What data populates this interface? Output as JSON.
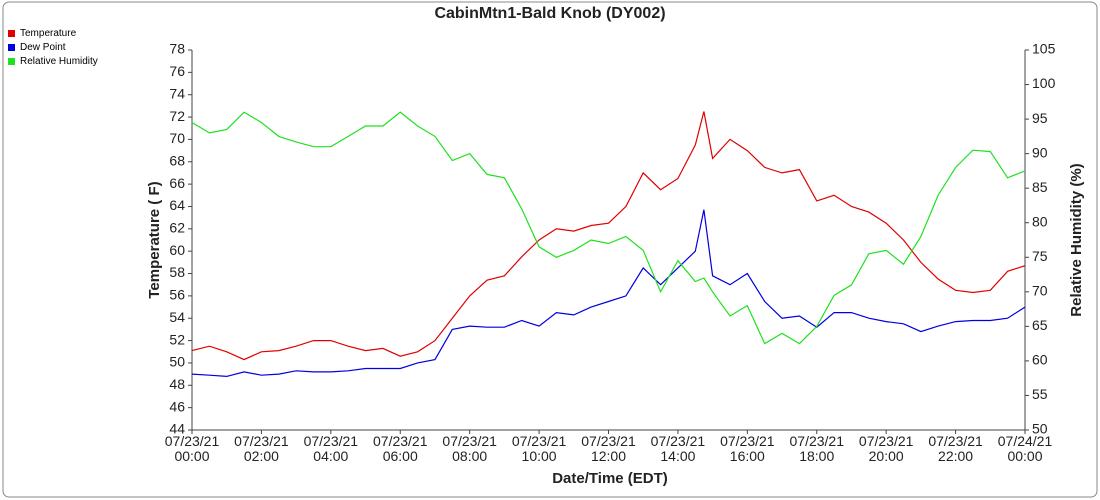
{
  "chart_data": {
    "type": "line",
    "title": "CabinMtn1-Bald Knob (DY002)",
    "x_label": "Date/Time (EDT)",
    "y_label": "Temperature ( F)",
    "y2_label": "Relative Humidity (%)",
    "legend": "top-left",
    "x": [
      "07/23/21 00:00",
      "07/23/21 00:30",
      "07/23/21 01:00",
      "07/23/21 01:30",
      "07/23/21 02:00",
      "07/23/21 02:30",
      "07/23/21 03:00",
      "07/23/21 03:30",
      "07/23/21 04:00",
      "07/23/21 04:30",
      "07/23/21 05:00",
      "07/23/21 05:30",
      "07/23/21 06:00",
      "07/23/21 06:30",
      "07/23/21 07:00",
      "07/23/21 07:30",
      "07/23/21 08:00",
      "07/23/21 08:30",
      "07/23/21 09:00",
      "07/23/21 09:30",
      "07/23/21 10:00",
      "07/23/21 10:30",
      "07/23/21 11:00",
      "07/23/21 11:30",
      "07/23/21 12:00",
      "07/23/21 12:30",
      "07/23/21 13:00",
      "07/23/21 13:30",
      "07/23/21 14:00",
      "07/23/21 14:30",
      "07/23/21 14:45",
      "07/23/21 15:00",
      "07/23/21 15:30",
      "07/23/21 16:00",
      "07/23/21 16:30",
      "07/23/21 17:00",
      "07/23/21 17:30",
      "07/23/21 18:00",
      "07/23/21 18:30",
      "07/23/21 19:00",
      "07/23/21 19:30",
      "07/23/21 20:00",
      "07/23/21 20:30",
      "07/23/21 21:00",
      "07/23/21 21:30",
      "07/23/21 22:00",
      "07/23/21 22:30",
      "07/23/21 23:00",
      "07/23/21 23:30",
      "07/24/21 00:00"
    ],
    "xlim": [
      "07/23/21 00:00",
      "07/24/21 00:00"
    ],
    "xticks": [
      "07/23/21 00:00",
      "07/23/21 02:00",
      "07/23/21 04:00",
      "07/23/21 06:00",
      "07/23/21 08:00",
      "07/23/21 10:00",
      "07/23/21 12:00",
      "07/23/21 14:00",
      "07/23/21 16:00",
      "07/23/21 18:00",
      "07/23/21 20:00",
      "07/23/21 22:00",
      "07/24/21 00:00"
    ],
    "ylim": [
      44,
      78
    ],
    "yticks": [
      44,
      46,
      48,
      50,
      52,
      54,
      56,
      58,
      60,
      62,
      64,
      66,
      68,
      70,
      72,
      74,
      76,
      78
    ],
    "y2lim": [
      50,
      105
    ],
    "y2ticks": [
      50,
      55,
      60,
      65,
      70,
      75,
      80,
      85,
      90,
      95,
      100,
      105
    ],
    "series": [
      {
        "name": "Temperature",
        "color": "#e00000",
        "values": [
          51.1,
          51.5,
          51,
          50.3,
          51,
          51.1,
          51.5,
          52,
          52,
          51.5,
          51.1,
          51.3,
          50.6,
          51,
          52,
          54,
          56,
          57.4,
          57.8,
          59.5,
          61,
          62,
          61.8,
          62.3,
          62.5,
          64,
          67,
          65.5,
          66.5,
          69.5,
          72.5,
          68.3,
          70,
          69,
          67.5,
          67,
          67.3,
          64.5,
          65,
          64,
          63.5,
          62.5,
          61,
          59,
          57.5,
          56.5,
          56.3,
          56.5,
          58.2,
          58.7
        ]
      },
      {
        "name": "Dew Point",
        "color": "#0000e0",
        "values": [
          49,
          48.9,
          48.8,
          49.2,
          48.9,
          49,
          49.3,
          49.2,
          49.2,
          49.3,
          49.5,
          49.5,
          49.5,
          50,
          50.3,
          53,
          53.3,
          53.2,
          53.2,
          53.8,
          53.3,
          54.5,
          54.3,
          55,
          55.5,
          56,
          58.5,
          57,
          58.5,
          60,
          63.7,
          57.8,
          57,
          58,
          55.5,
          54,
          54.2,
          53.2,
          54.5,
          54.5,
          54,
          53.7,
          53.5,
          52.8,
          53.3,
          53.7,
          53.8,
          53.8,
          54,
          55
        ]
      },
      {
        "name": "Relative Humidity",
        "color": "#20e020",
        "axis": "y2",
        "values": [
          94.5,
          93,
          93.5,
          96,
          94.5,
          92.5,
          91.7,
          91,
          91,
          92.5,
          94,
          94,
          96,
          94,
          92.5,
          89,
          90,
          87,
          86.5,
          82,
          76.5,
          75,
          76,
          77.5,
          77,
          78,
          76,
          70,
          74.5,
          71.5,
          72,
          70,
          66.5,
          68,
          62.5,
          64,
          62.5,
          65,
          69.5,
          71,
          75.5,
          76,
          74,
          78,
          84,
          88,
          90.5,
          90.3,
          86.5,
          87.5
        ]
      }
    ]
  }
}
